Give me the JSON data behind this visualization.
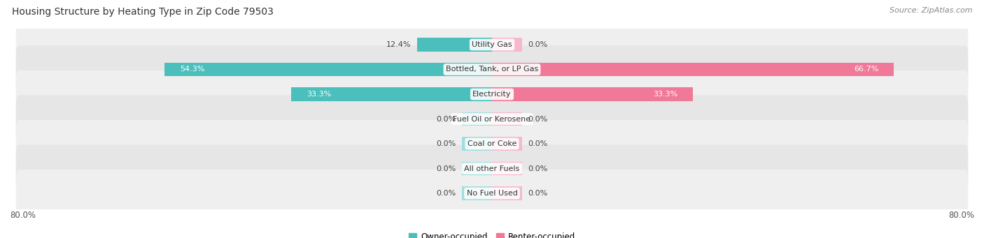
{
  "title": "Housing Structure by Heating Type in Zip Code 79503",
  "source": "Source: ZipAtlas.com",
  "categories": [
    "Utility Gas",
    "Bottled, Tank, or LP Gas",
    "Electricity",
    "Fuel Oil or Kerosene",
    "Coal or Coke",
    "All other Fuels",
    "No Fuel Used"
  ],
  "owner_values": [
    12.4,
    54.3,
    33.3,
    0.0,
    0.0,
    0.0,
    0.0
  ],
  "renter_values": [
    0.0,
    66.7,
    33.3,
    0.0,
    0.0,
    0.0,
    0.0
  ],
  "owner_color": "#4bbfbc",
  "renter_color": "#f07898",
  "owner_color_zero": "#a0dedd",
  "renter_color_zero": "#f8b8cc",
  "row_bg_even": "#efefef",
  "row_bg_odd": "#e6e6e6",
  "axis_max": 80.0,
  "zero_stub": 5.0,
  "title_fontsize": 10,
  "source_fontsize": 8,
  "legend_fontsize": 8.5,
  "bar_label_fontsize": 8,
  "category_fontsize": 8,
  "axis_label_fontsize": 8.5
}
